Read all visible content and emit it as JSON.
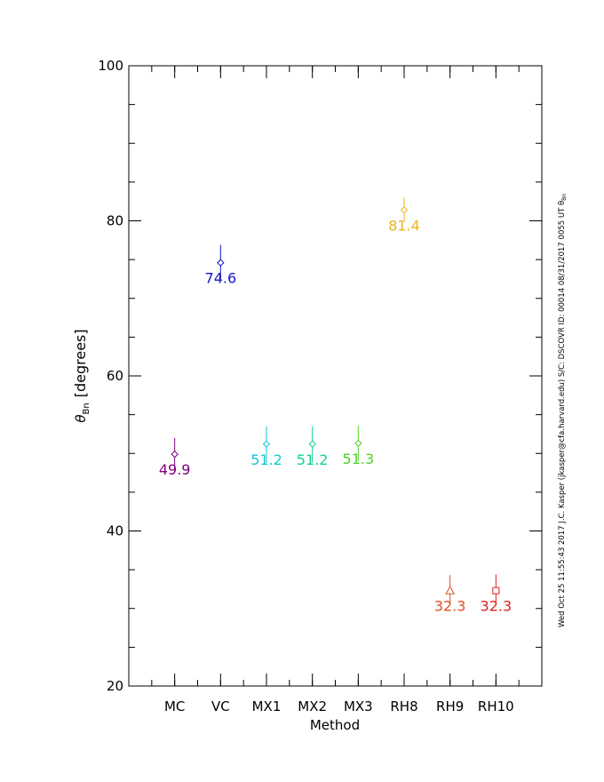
{
  "chart_data": {
    "type": "scatter",
    "categories": [
      "MC",
      "VC",
      "MX1",
      "MX2",
      "MX3",
      "RH8",
      "RH9",
      "RH10"
    ],
    "xlabel": "Method",
    "ylabel_symbol": "θ",
    "ylabel_sub": "Bn",
    "ylabel_unit": "[degrees]",
    "ylim": [
      20,
      100
    ],
    "yticks": [
      20,
      40,
      60,
      80,
      100
    ],
    "yticks_labels": [
      "20",
      "40",
      "60",
      "80",
      "100"
    ],
    "points": [
      {
        "category": "MC",
        "value": 49.9,
        "low": 47.7,
        "high": 52.0,
        "label": "49.9",
        "marker": "diamond",
        "color": "#800080"
      },
      {
        "category": "VC",
        "value": 74.6,
        "low": 72.5,
        "high": 76.9,
        "label": "74.6",
        "marker": "diamond",
        "color": "#1414c8"
      },
      {
        "category": "MX1",
        "value": 51.2,
        "low": 48.8,
        "high": 53.5,
        "label": "51.2",
        "marker": "diamond",
        "color": "#10c8d2"
      },
      {
        "category": "MX2",
        "value": 51.2,
        "low": 48.8,
        "high": 53.5,
        "label": "51.2",
        "marker": "diamond",
        "color": "#10d48c"
      },
      {
        "category": "MX3",
        "value": 51.3,
        "low": 49.0,
        "high": 53.6,
        "label": "51.3",
        "marker": "diamond",
        "color": "#50d228"
      },
      {
        "category": "RH8",
        "value": 81.4,
        "low": 79.8,
        "high": 83.0,
        "label": "81.4",
        "marker": "diamond",
        "color": "#e8b41e"
      },
      {
        "category": "RH9",
        "value": 32.3,
        "low": 30.8,
        "high": 34.3,
        "label": "32.3",
        "marker": "triangle",
        "color": "#e0501e"
      },
      {
        "category": "RH10",
        "value": 32.3,
        "low": 30.8,
        "high": 34.4,
        "label": "32.3",
        "marker": "square",
        "color": "#e01e1e"
      }
    ]
  },
  "side_note": "Wed Oct 25 11:55:43 2017   J.C. Kasper (jkasper@cfa.harvard.edu)   S/C: DSCOVR ID: 00014 08/31/2017  0055 UT θ",
  "side_note_sub": "Bn"
}
